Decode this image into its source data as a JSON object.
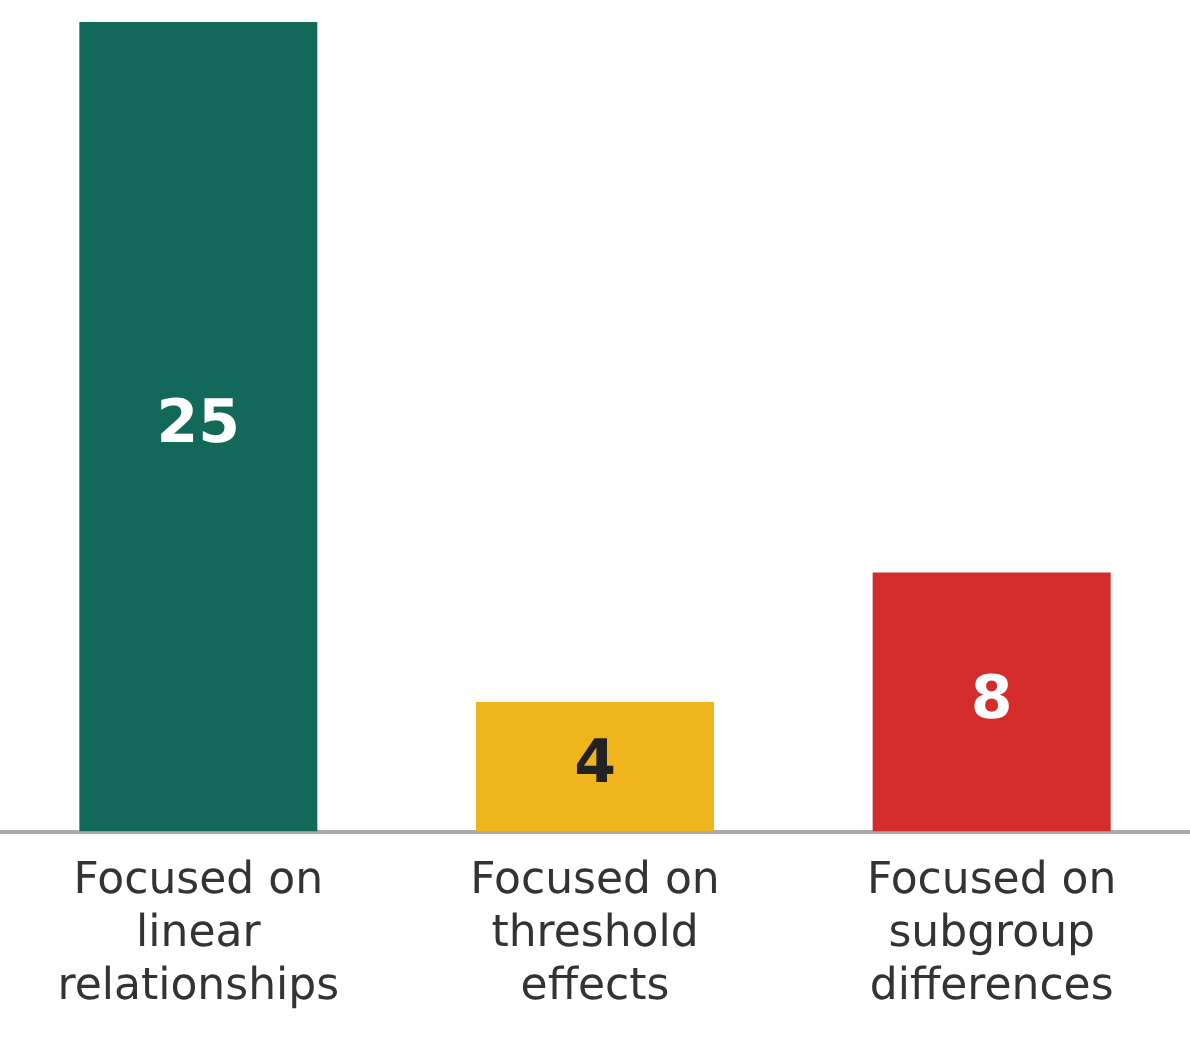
{
  "chart_data": {
    "type": "bar",
    "categories": [
      "Focused on linear relationships",
      "Focused on threshold effects",
      "Focused on subgroup differences"
    ],
    "values": [
      25,
      4,
      8
    ],
    "colors": [
      "#12695a",
      "#f0b41c",
      "#d42b2b"
    ],
    "data_labels": true,
    "grid": false,
    "legend": false
  }
}
